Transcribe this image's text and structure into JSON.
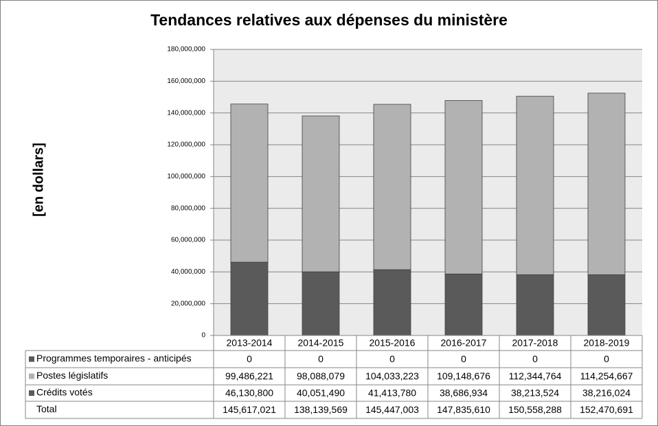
{
  "chart_data": {
    "type": "stacked_bar",
    "title": "Tendances relatives aux dépenses du ministère",
    "y_label": "[en dollars]",
    "categories": [
      "2013-2014",
      "2014-2015",
      "2015-2016",
      "2016-2017",
      "2017-2018",
      "2018-2019"
    ],
    "series": [
      {
        "name": "Programmes temporaires - anticipés",
        "color": "#595959",
        "values": [
          0,
          0,
          0,
          0,
          0,
          0
        ],
        "value_labels": [
          "0",
          "0",
          "0",
          "0",
          "0",
          "0"
        ]
      },
      {
        "name": "Postes législatifs",
        "color": "#b2b2b2",
        "values": [
          99486221,
          98088079,
          104033223,
          109148676,
          112344764,
          114254667
        ],
        "value_labels": [
          "99,486,221",
          "98,088,079",
          "104,033,223",
          "109,148,676",
          "112,344,764",
          "114,254,667"
        ]
      },
      {
        "name": "Crédits votés",
        "color": "#5a5a5a",
        "values": [
          46130800,
          40051490,
          41413780,
          38686934,
          38213524,
          38216024
        ],
        "value_labels": [
          "46,130,800",
          "40,051,490",
          "41,413,780",
          "38,686,934",
          "38,213,524",
          "38,216,024"
        ]
      }
    ],
    "total": {
      "name": "Total",
      "values": [
        145617021,
        138139569,
        145447003,
        147835610,
        150558288,
        152470691
      ],
      "value_labels": [
        "145,617,021",
        "138,139,569",
        "145,447,003",
        "147,835,610",
        "150,558,288",
        "152,470,691"
      ]
    },
    "ylim": [
      0,
      180000000
    ],
    "yticks": [
      0,
      {
        "value": 20000000,
        "label": "20,000,000"
      },
      {
        "value": 40000000,
        "label": "40,000,000"
      },
      {
        "value": 60000000,
        "label": "60,000,000"
      },
      {
        "value": 80000000,
        "label": "80,000,000"
      },
      {
        "value": 100000000,
        "label": "100,000,000"
      },
      {
        "value": 120000000,
        "label": "120,000,000"
      },
      {
        "value": 140000000,
        "label": "140,000,000"
      },
      {
        "value": 160000000,
        "label": "160,000,000"
      },
      {
        "value": 180000000,
        "label": "180,000,000"
      }
    ],
    "grid": true
  }
}
